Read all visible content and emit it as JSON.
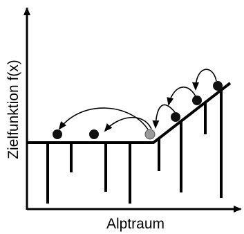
{
  "labels": {
    "x_axis": "Alptraum",
    "y_axis": "Zielfunktion f(x)"
  },
  "colors": {
    "stroke": "#000000",
    "point_fill": "#111111",
    "highlight_fill": "#999999"
  }
}
